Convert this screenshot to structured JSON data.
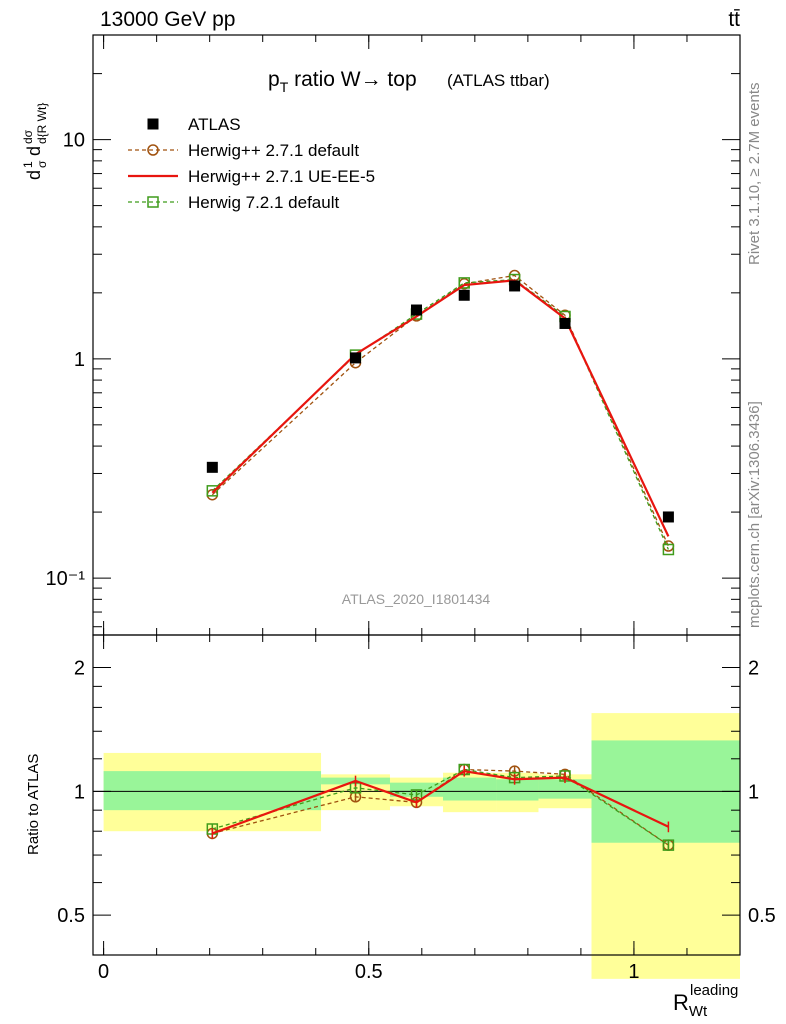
{
  "header": {
    "left": "13000 GeV pp",
    "right": "tt̄"
  },
  "title": {
    "main": "p",
    "main_sub": "T",
    "main_rest": " ratio W→ top",
    "small": "(ATLAS ttbar)"
  },
  "side_labels": {
    "rivet": "Rivet 3.1.10, ≥ 2.7M events",
    "mcplots": "mcplots.cern.ch [arXiv:1306.3436]"
  },
  "watermark": "ATLAS_2020_I1801434",
  "axes": {
    "y_main_label": "d¹/σ dσ/d{R Wt leading}",
    "y_ratio_label": "Ratio to ATLAS",
    "x_label": "R",
    "x_label_sub": "Wt",
    "x_label_sup": "leading",
    "y_main_ticks": [
      "10⁻¹",
      "1",
      "10"
    ],
    "y_ratio_ticks": [
      "0.5",
      "1",
      "2"
    ],
    "x_ticks": [
      "0",
      "0.5",
      "1"
    ]
  },
  "legend": {
    "position": "top-left",
    "entries": [
      {
        "label": "ATLAS",
        "color": "#000000",
        "style": "marker-square"
      },
      {
        "label": "Herwig++ 2.7.1 default",
        "color": "#a0520f",
        "style": "dashed-circle"
      },
      {
        "label": "Herwig++ 2.7.1 UE-EE-5",
        "color": "#e8150f",
        "style": "solid"
      },
      {
        "label": "Herwig 7.2.1 default",
        "color": "#3f9c1b",
        "style": "dashed-open-square"
      }
    ]
  },
  "chart_data": {
    "type": "line",
    "y_scale": "log",
    "xlim": [
      -0.02,
      1.2
    ],
    "ylim_main": [
      0.055,
      30
    ],
    "ylim_ratio": [
      0.4,
      2.4
    ],
    "x": [
      0.205,
      0.475,
      0.59,
      0.68,
      0.775,
      0.87,
      1.065
    ],
    "bin_edges": [
      0,
      0.41,
      0.54,
      0.64,
      0.74,
      0.82,
      0.92,
      1.2
    ],
    "ratio_band_inner": [
      [
        0.9,
        1.12
      ],
      [
        1.04,
        1.08
      ],
      [
        0.97,
        1.05
      ],
      [
        0.95,
        1.08
      ],
      [
        0.95,
        1.07
      ],
      [
        0.96,
        1.07
      ],
      [
        0.75,
        1.33
      ]
    ],
    "ratio_band_outer": [
      [
        0.8,
        1.24
      ],
      [
        0.9,
        1.1
      ],
      [
        0.92,
        1.08
      ],
      [
        0.89,
        1.11
      ],
      [
        0.89,
        1.11
      ],
      [
        0.91,
        1.1
      ],
      [
        0.35,
        1.55
      ]
    ],
    "series": [
      {
        "name": "ATLAS",
        "values": [
          0.32,
          1.01,
          1.67,
          1.95,
          2.15,
          1.45,
          0.19
        ],
        "ratio": [
          1,
          1,
          1,
          1,
          1,
          1,
          1
        ]
      },
      {
        "name": "Herwig++ 2.7.1 default",
        "values": [
          0.24,
          0.96,
          1.57,
          2.2,
          2.4,
          1.58,
          0.14
        ],
        "ratio": [
          0.79,
          0.97,
          0.94,
          1.13,
          1.12,
          1.1,
          0.74
        ]
      },
      {
        "name": "Herwig++ 2.7.1 UE-EE-5",
        "values": [
          0.245,
          1.05,
          1.56,
          2.17,
          2.28,
          1.53,
          0.155
        ],
        "ratio": [
          0.79,
          1.06,
          0.94,
          1.12,
          1.07,
          1.08,
          0.82
        ]
      },
      {
        "name": "Herwig 7.2.1 default",
        "values": [
          0.25,
          1.04,
          1.6,
          2.22,
          2.3,
          1.56,
          0.135
        ],
        "ratio": [
          0.81,
          1.02,
          0.98,
          1.13,
          1.08,
          1.09,
          0.74
        ]
      }
    ]
  }
}
